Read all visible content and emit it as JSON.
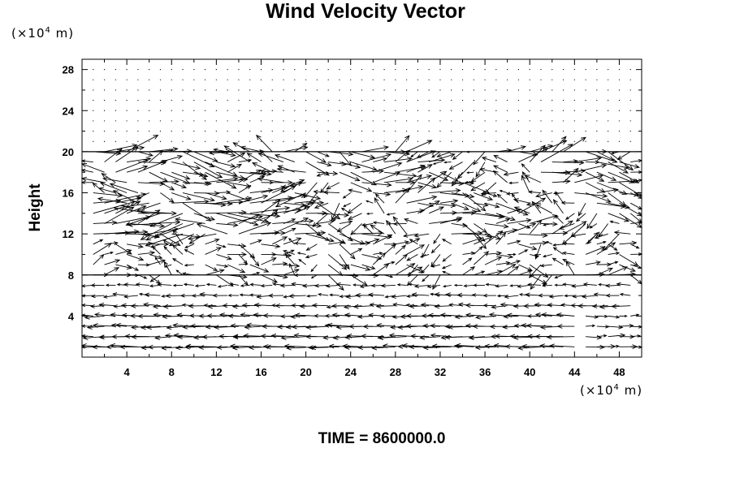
{
  "chart_data": {
    "type": "vector-field",
    "title": "Wind Velocity Vector",
    "ylabel": "Height",
    "x_unit": "(×10⁴ m)",
    "y_unit": "(×10⁴ m)",
    "xlim": [
      0,
      50
    ],
    "ylim": [
      0,
      29
    ],
    "x_ticks": [
      4,
      8,
      12,
      16,
      20,
      24,
      28,
      32,
      36,
      40,
      44,
      48
    ],
    "y_ticks": [
      4,
      8,
      12,
      16,
      20,
      24,
      28
    ],
    "reference_lines_y": [
      8,
      20
    ],
    "annotation": "TIME = 8600000.0",
    "colors": {
      "vectors": "#000000",
      "frame": "#000000",
      "background": "#ffffff"
    }
  },
  "texts": {
    "unit_base": "(×10",
    "unit_exp": "4",
    "unit_tail": " m)"
  }
}
